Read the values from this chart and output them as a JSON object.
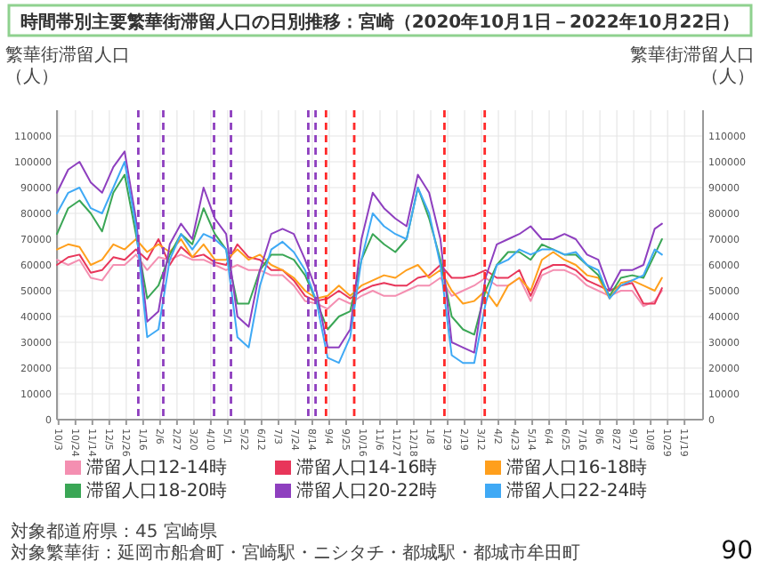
{
  "chart_data": {
    "type": "line",
    "title": "時間帯別主要繁華街滞留人口の日別推移：宮崎（2020年10月1日－2022年10月22日）",
    "ylabel": "繁華街滞留人口（人）",
    "y2label": "繁華街滞留人口（人）",
    "x": [
      "2020-10-01",
      "2020-10-15",
      "2020-10-29",
      "2020-11-12",
      "2020-11-26",
      "2020-12-10",
      "2020-12-24",
      "2021-01-07",
      "2021-01-21",
      "2021-02-04",
      "2021-02-18",
      "2021-03-04",
      "2021-03-18",
      "2021-04-01",
      "2021-04-15",
      "2021-04-29",
      "2021-05-13",
      "2021-05-27",
      "2021-06-10",
      "2021-06-24",
      "2021-07-08",
      "2021-07-22",
      "2021-08-05",
      "2021-08-19",
      "2021-09-02",
      "2021-09-16",
      "2021-09-30",
      "2021-10-14",
      "2021-10-28",
      "2021-11-11",
      "2021-11-25",
      "2021-12-09",
      "2021-12-23",
      "2022-01-06",
      "2022-01-20",
      "2022-02-03",
      "2022-02-17",
      "2022-03-03",
      "2022-03-17",
      "2022-03-31",
      "2022-04-14",
      "2022-04-28",
      "2022-05-12",
      "2022-05-26",
      "2022-06-09",
      "2022-06-23",
      "2022-07-07",
      "2022-07-21",
      "2022-08-04",
      "2022-08-18",
      "2022-09-01",
      "2022-09-15",
      "2022-09-29",
      "2022-10-13",
      "2022-10-22"
    ],
    "series": [
      {
        "name": "滞留人口12-14時",
        "color": "#f48fb1",
        "values": [
          62000,
          60000,
          62000,
          55000,
          54000,
          60000,
          60000,
          64000,
          58000,
          63000,
          62000,
          64000,
          62000,
          62000,
          60000,
          58000,
          60000,
          58000,
          58000,
          56000,
          56000,
          52000,
          46000,
          45000,
          43000,
          47000,
          45000,
          48000,
          50000,
          48000,
          48000,
          50000,
          52000,
          52000,
          55000,
          48000,
          50000,
          52000,
          55000,
          52000,
          52000,
          55000,
          46000,
          56000,
          58000,
          58000,
          56000,
          52000,
          50000,
          48000,
          50000,
          50000,
          44000,
          46000,
          50000
        ]
      },
      {
        "name": "滞留人口14-16時",
        "color": "#e8365a",
        "values": [
          60000,
          63000,
          64000,
          57000,
          58000,
          63000,
          62000,
          66000,
          62000,
          70000,
          60000,
          67000,
          63000,
          64000,
          61000,
          60000,
          68000,
          63000,
          62000,
          58000,
          58000,
          54000,
          48000,
          46000,
          47000,
          50000,
          47000,
          50000,
          52000,
          53000,
          52000,
          52000,
          55000,
          56000,
          60000,
          55000,
          55000,
          56000,
          58000,
          55000,
          55000,
          58000,
          48000,
          58000,
          60000,
          60000,
          58000,
          54000,
          52000,
          50000,
          52000,
          53000,
          45000,
          45000,
          51000
        ]
      },
      {
        "name": "滞留人口16-18時",
        "color": "#ff9f1c",
        "values": [
          66000,
          68000,
          67000,
          60000,
          62000,
          68000,
          66000,
          70000,
          65000,
          68000,
          65000,
          70000,
          63000,
          68000,
          62000,
          62000,
          66000,
          62000,
          64000,
          60000,
          58000,
          55000,
          50000,
          47000,
          48000,
          52000,
          48000,
          52000,
          54000,
          56000,
          55000,
          58000,
          60000,
          55000,
          58000,
          50000,
          45000,
          46000,
          50000,
          44000,
          52000,
          55000,
          50000,
          62000,
          65000,
          62000,
          60000,
          56000,
          55000,
          47000,
          53000,
          54000,
          52000,
          50000,
          55000
        ]
      },
      {
        "name": "滞留人口18-20時",
        "color": "#3aa655",
        "values": [
          72000,
          82000,
          85000,
          80000,
          73000,
          88000,
          95000,
          72000,
          47000,
          52000,
          64000,
          72000,
          68000,
          82000,
          72000,
          66000,
          45000,
          45000,
          58000,
          64000,
          64000,
          62000,
          56000,
          46000,
          35000,
          40000,
          42000,
          62000,
          72000,
          68000,
          65000,
          70000,
          90000,
          78000,
          62000,
          40000,
          35000,
          33000,
          50000,
          60000,
          65000,
          65000,
          62000,
          68000,
          66000,
          64000,
          64000,
          60000,
          56000,
          48000,
          55000,
          56000,
          55000,
          64000,
          70000
        ]
      },
      {
        "name": "滞留人口20-22時",
        "color": "#8e3fbf",
        "values": [
          88000,
          97000,
          100000,
          92000,
          88000,
          98000,
          104000,
          78000,
          38000,
          42000,
          68000,
          76000,
          70000,
          90000,
          78000,
          72000,
          40000,
          36000,
          58000,
          72000,
          74000,
          72000,
          62000,
          50000,
          28000,
          28000,
          35000,
          70000,
          88000,
          82000,
          78000,
          75000,
          95000,
          88000,
          70000,
          30000,
          28000,
          26000,
          55000,
          68000,
          70000,
          72000,
          75000,
          70000,
          70000,
          72000,
          70000,
          64000,
          62000,
          50000,
          58000,
          58000,
          60000,
          74000,
          76000
        ]
      },
      {
        "name": "滞留人口22-24時",
        "color": "#3fa9f5",
        "values": [
          80000,
          88000,
          90000,
          82000,
          80000,
          90000,
          100000,
          75000,
          32000,
          35000,
          62000,
          72000,
          66000,
          72000,
          70000,
          66000,
          32000,
          28000,
          52000,
          66000,
          69000,
          65000,
          58000,
          46000,
          24000,
          22000,
          32000,
          62000,
          80000,
          75000,
          72000,
          70000,
          90000,
          80000,
          60000,
          25000,
          22000,
          22000,
          45000,
          60000,
          62000,
          66000,
          64000,
          66000,
          66000,
          64000,
          65000,
          60000,
          58000,
          47000,
          52000,
          54000,
          56000,
          66000,
          64000
        ]
      }
    ],
    "xlim": [
      "2020-10-01",
      "2022-12-12"
    ],
    "xticks": [
      {
        "value": "2020-10-03",
        "label": "10/3"
      },
      {
        "value": "2020-10-24",
        "label": "10/24"
      },
      {
        "value": "2020-11-14",
        "label": "11/14"
      },
      {
        "value": "2020-12-05",
        "label": "12/5"
      },
      {
        "value": "2020-12-26",
        "label": "12/26"
      },
      {
        "value": "2021-01-16",
        "label": "1/16"
      },
      {
        "value": "2021-02-06",
        "label": "2/6"
      },
      {
        "value": "2021-02-27",
        "label": "2/27"
      },
      {
        "value": "2021-03-20",
        "label": "3/20"
      },
      {
        "value": "2021-04-10",
        "label": "4/10"
      },
      {
        "value": "2021-05-01",
        "label": "5/1"
      },
      {
        "value": "2021-05-22",
        "label": "5/22"
      },
      {
        "value": "2021-06-12",
        "label": "6/12"
      },
      {
        "value": "2021-07-03",
        "label": "7/3"
      },
      {
        "value": "2021-07-24",
        "label": "7/24"
      },
      {
        "value": "2021-08-14",
        "label": "8/14"
      },
      {
        "value": "2021-09-04",
        "label": "9/4"
      },
      {
        "value": "2021-09-25",
        "label": "9/25"
      },
      {
        "value": "2021-10-16",
        "label": "10/16"
      },
      {
        "value": "2021-11-06",
        "label": "11/6"
      },
      {
        "value": "2021-11-27",
        "label": "11/27"
      },
      {
        "value": "2021-12-18",
        "label": "12/18"
      },
      {
        "value": "2022-01-08",
        "label": "1/8"
      },
      {
        "value": "2022-01-29",
        "label": "1/29"
      },
      {
        "value": "2022-02-19",
        "label": "2/19"
      },
      {
        "value": "2022-03-12",
        "label": "3/12"
      },
      {
        "value": "2022-04-02",
        "label": "4/2"
      },
      {
        "value": "2022-04-23",
        "label": "4/23"
      },
      {
        "value": "2022-05-14",
        "label": "5/14"
      },
      {
        "value": "2022-06-04",
        "label": "6/4"
      },
      {
        "value": "2022-06-25",
        "label": "6/25"
      },
      {
        "value": "2022-07-16",
        "label": "7/16"
      },
      {
        "value": "2022-08-06",
        "label": "8/6"
      },
      {
        "value": "2022-08-27",
        "label": "8/27"
      },
      {
        "value": "2022-09-17",
        "label": "9/17"
      },
      {
        "value": "2022-10-08",
        "label": "10/8"
      },
      {
        "value": "2022-10-29",
        "label": "10/29"
      },
      {
        "value": "2022-11-19",
        "label": "11/19"
      }
    ],
    "ylim": [
      0,
      120000
    ],
    "yticks": [
      0,
      10000,
      20000,
      30000,
      40000,
      50000,
      60000,
      70000,
      80000,
      90000,
      100000,
      110000
    ],
    "y2lim": [
      0,
      120000
    ],
    "y2ticks": [
      0,
      10000,
      20000,
      30000,
      40000,
      50000,
      60000,
      70000,
      80000,
      90000,
      100000,
      110000
    ],
    "ref_lines": [
      {
        "axis": "x",
        "value": "2021-01-10",
        "color": "#8e3fbf",
        "line_style": "dashed"
      },
      {
        "axis": "x",
        "value": "2021-02-10",
        "color": "#8e3fbf",
        "line_style": "dashed"
      },
      {
        "axis": "x",
        "value": "2021-04-14",
        "color": "#8e3fbf",
        "line_style": "dashed"
      },
      {
        "axis": "x",
        "value": "2021-05-05",
        "color": "#8e3fbf",
        "line_style": "dashed"
      },
      {
        "axis": "x",
        "value": "2021-08-09",
        "color": "#8e3fbf",
        "line_style": "dashed"
      },
      {
        "axis": "x",
        "value": "2021-08-18",
        "color": "#8e3fbf",
        "line_style": "dashed"
      },
      {
        "axis": "x",
        "value": "2021-08-31",
        "color": "#ff2a2a",
        "line_style": "dashed"
      },
      {
        "axis": "x",
        "value": "2021-10-05",
        "color": "#ff2a2a",
        "line_style": "dashed"
      },
      {
        "axis": "x",
        "value": "2022-01-25",
        "color": "#ff2a2a",
        "line_style": "dashed"
      },
      {
        "axis": "x",
        "value": "2022-03-16",
        "color": "#ff2a2a",
        "line_style": "dashed"
      }
    ],
    "annotations": [
      "対象都道府県：45 宮崎県",
      "対象繁華街：延岡市船倉町・宮崎駅・ニシタチ・都城駅・都城市牟田町",
      "90"
    ],
    "grid": true,
    "legend": "bottom",
    "line_style": "solid"
  }
}
